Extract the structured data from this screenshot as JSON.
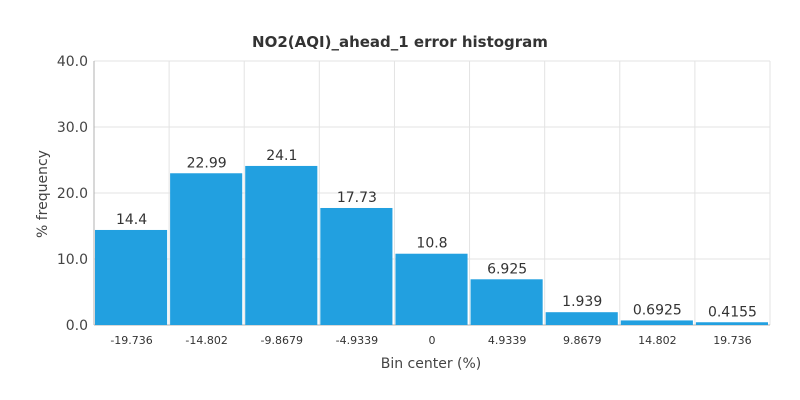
{
  "chart_data": {
    "type": "bar",
    "title": "NO2(AQI)_ahead_1 error histogram",
    "xlabel": "Bin center (%)",
    "ylabel": "% frequency",
    "categories": [
      "-19.736",
      "-14.802",
      "-9.8679",
      "-4.9339",
      "0",
      "4.9339",
      "9.8679",
      "14.802",
      "19.736"
    ],
    "values": [
      14.4,
      22.99,
      24.1,
      17.73,
      10.8,
      6.925,
      1.939,
      0.6925,
      0.4155
    ],
    "value_labels": [
      "14.4",
      "22.99",
      "24.1",
      "17.73",
      "10.8",
      "6.925",
      "1.939",
      "0.6925",
      "0.4155"
    ],
    "ylim": [
      0,
      40
    ],
    "yticks": [
      "0.0",
      "10.0",
      "20.0",
      "30.0",
      "40.0"
    ],
    "grid": true,
    "bar_color": "#22a0e0"
  }
}
